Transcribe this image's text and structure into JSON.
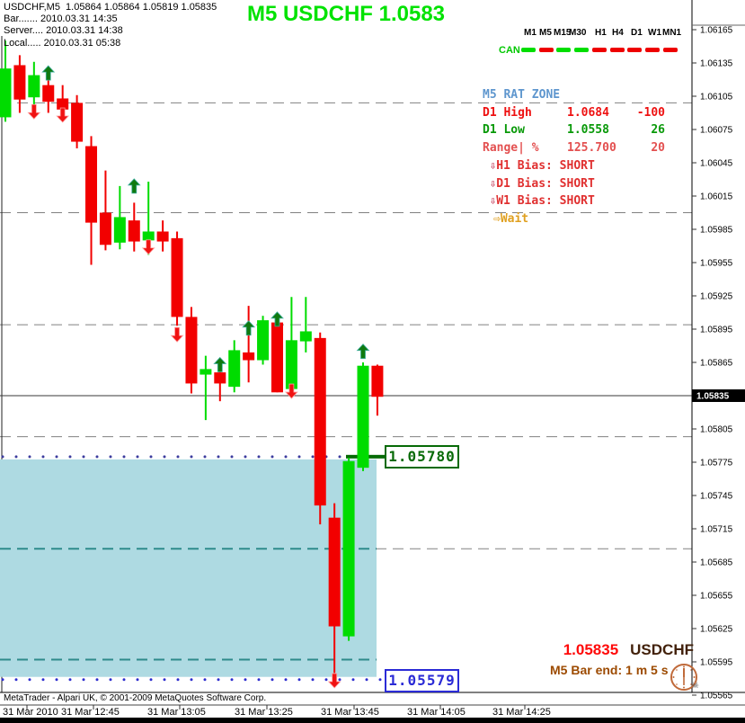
{
  "header": {
    "symbol_line": "USDCHF,M5  1.05864 1.05864 1.05819 1.05835",
    "bar_line": "Bar....... 2010.03.31 14:35",
    "server_line": "Server.... 2010.03.31 14:38",
    "local_line": "Local..... 2010.03.31 05:38",
    "title": "M5 USDCHF 1.0583"
  },
  "timeframe_bar": {
    "row_label": "CAN",
    "items": [
      {
        "label": "M1",
        "state": "green"
      },
      {
        "label": "M5",
        "state": "red"
      },
      {
        "label": "M15",
        "state": "green"
      },
      {
        "label": "M30",
        "state": "green"
      },
      {
        "label": "H1",
        "state": "red"
      },
      {
        "label": "H4",
        "state": "red"
      },
      {
        "label": "D1",
        "state": "red"
      },
      {
        "label": "W1",
        "state": "red"
      },
      {
        "label": "MN1",
        "state": "red"
      }
    ],
    "state_colors": {
      "green": "#00de00",
      "red": "#ee0000"
    }
  },
  "panel": {
    "title": "M5 RAT ZONE",
    "rows": [
      {
        "label": "D1 High",
        "value": "1.0684",
        "extra": "-100",
        "color": "#ee1111"
      },
      {
        "label": "D1 Low",
        "value": "1.0558",
        "extra": "26",
        "color": "#089908"
      },
      {
        "label": "Range| %",
        "value": "125.700",
        "extra": "20",
        "color": "#e35050"
      }
    ],
    "bias_rows": [
      {
        "icon": "⇩",
        "text": "H1 Bias: SHORT",
        "color": "#e03030",
        "icon_color": "#c03050"
      },
      {
        "icon": "⇩",
        "text": "D1 Bias: SHORT",
        "color": "#e03030",
        "icon_color": "#c03050"
      },
      {
        "icon": "⇩",
        "text": "W1 Bias: SHORT",
        "color": "#e03030",
        "icon_color": "#c03050"
      }
    ],
    "wait_row": {
      "icon": "⇨",
      "text": "Wait"
    }
  },
  "chart_data": {
    "type": "candlestick",
    "symbol": "USDCHF",
    "period": "M5",
    "axis": {
      "top_label_price": 1.06165,
      "price_step": 0.0003,
      "label_count": 21,
      "current_price": 1.05835,
      "price_labels": [
        "1.06165",
        "1.06135",
        "1.06105",
        "1.06075",
        "1.06045",
        "1.06015",
        "1.05985",
        "1.05955",
        "1.05925",
        "1.05895",
        "1.05865",
        "1.05835",
        "1.05805",
        "1.05775",
        "1.05745",
        "1.05715",
        "1.05685",
        "1.05655",
        "1.05625",
        "1.05595",
        "1.05565"
      ]
    },
    "gridline_prices": [
      1.06099,
      1.06,
      1.05899,
      1.05798,
      1.05697
    ],
    "zone": {
      "top_price": 1.0578,
      "bottom_price": 1.05579,
      "fill": "#aedae2",
      "grid_color": "#2e8b8b",
      "zone_grid_prices": [
        1.05697,
        1.05597
      ]
    },
    "levels": [
      {
        "label": "1.05780",
        "price": 1.0578,
        "dot_color": "#3c3c9e",
        "accent": "#066a06"
      },
      {
        "label": "1.05579",
        "price": 1.05579,
        "dot_color": "#2e2ecf",
        "accent": "#2b2bd6"
      }
    ],
    "candles": [
      {
        "o": 1.06086,
        "h": 1.06155,
        "l": 1.06082,
        "c": 1.0613
      },
      {
        "o": 1.06133,
        "h": 1.06142,
        "l": 1.0609,
        "c": 1.06102
      },
      {
        "o": 1.06104,
        "h": 1.06136,
        "l": 1.06094,
        "c": 1.06124
      },
      {
        "o": 1.06115,
        "h": 1.0612,
        "l": 1.0609,
        "c": 1.061
      },
      {
        "o": 1.06103,
        "h": 1.06115,
        "l": 1.06086,
        "c": 1.06093
      },
      {
        "o": 1.06099,
        "h": 1.06106,
        "l": 1.06058,
        "c": 1.06064
      },
      {
        "o": 1.0606,
        "h": 1.06069,
        "l": 1.05953,
        "c": 1.05991
      },
      {
        "o": 1.06,
        "h": 1.06038,
        "l": 1.05966,
        "c": 1.05971
      },
      {
        "o": 1.05973,
        "h": 1.06024,
        "l": 1.05967,
        "c": 1.05996
      },
      {
        "o": 1.05993,
        "h": 1.06009,
        "l": 1.05965,
        "c": 1.05974
      },
      {
        "o": 1.05975,
        "h": 1.06028,
        "l": 1.05962,
        "c": 1.05983
      },
      {
        "o": 1.05983,
        "h": 1.05993,
        "l": 1.05965,
        "c": 1.05974
      },
      {
        "o": 1.05977,
        "h": 1.05983,
        "l": 1.05898,
        "c": 1.05906
      },
      {
        "o": 1.05906,
        "h": 1.05915,
        "l": 1.05837,
        "c": 1.05846
      },
      {
        "o": 1.05854,
        "h": 1.05871,
        "l": 1.05813,
        "c": 1.05859
      },
      {
        "o": 1.05856,
        "h": 1.05859,
        "l": 1.0583,
        "c": 1.05846
      },
      {
        "o": 1.05843,
        "h": 1.05885,
        "l": 1.05838,
        "c": 1.05876
      },
      {
        "o": 1.05874,
        "h": 1.05916,
        "l": 1.05847,
        "c": 1.05867
      },
      {
        "o": 1.05867,
        "h": 1.05907,
        "l": 1.05863,
        "c": 1.05903
      },
      {
        "o": 1.05901,
        "h": 1.0591,
        "l": 1.05838,
        "c": 1.05838
      },
      {
        "o": 1.05841,
        "h": 1.05924,
        "l": 1.05837,
        "c": 1.05885
      },
      {
        "o": 1.05884,
        "h": 1.05924,
        "l": 1.05874,
        "c": 1.05893
      },
      {
        "o": 1.05887,
        "h": 1.05892,
        "l": 1.05719,
        "c": 1.05736
      },
      {
        "o": 1.05725,
        "h": 1.05738,
        "l": 1.05585,
        "c": 1.05627
      },
      {
        "o": 1.05618,
        "h": 1.05779,
        "l": 1.05614,
        "c": 1.05776
      },
      {
        "o": 1.0577,
        "h": 1.05865,
        "l": 1.05767,
        "c": 1.05862
      },
      {
        "o": 1.05862,
        "h": 1.05863,
        "l": 1.05817,
        "c": 1.05834
      }
    ],
    "arrows": [
      {
        "i": 2,
        "dir": "down",
        "price": 1.06091
      },
      {
        "i": 3,
        "dir": "up",
        "price": 1.06126
      },
      {
        "i": 4,
        "dir": "down",
        "price": 1.06088
      },
      {
        "i": 9,
        "dir": "up",
        "price": 1.06024
      },
      {
        "i": 10,
        "dir": "down",
        "price": 1.05969
      },
      {
        "i": 12,
        "dir": "down",
        "price": 1.0589
      },
      {
        "i": 15,
        "dir": "up",
        "price": 1.05863
      },
      {
        "i": 17,
        "dir": "up",
        "price": 1.05896
      },
      {
        "i": 19,
        "dir": "up",
        "price": 1.05904
      },
      {
        "i": 20,
        "dir": "down",
        "price": 1.05839
      },
      {
        "i": 23,
        "dir": "down",
        "price": 1.05578
      },
      {
        "i": 25,
        "dir": "up",
        "price": 1.05875
      }
    ],
    "colors": {
      "up": "#00dc00",
      "down": "#f20000",
      "arrow_up": "#0f7a0f",
      "arrow_down": "#f01212",
      "grid": "#808080",
      "bid_line": "#3a3a3a"
    }
  },
  "x_axis": {
    "labels": [
      "31 Mar 2010",
      "31 Mar 12:45",
      "31 Mar 13:05",
      "31 Mar 13:25",
      "31 Mar 13:45",
      "31 Mar 14:05",
      "31 Mar 14:25"
    ]
  },
  "footer": {
    "copyright": "MetaTrader - Alpari UK, © 2001-2009 MetaQuotes Software Corp."
  },
  "info_corner": {
    "price": "1.05835",
    "symbol": "USDCHF",
    "bar_end": "M5 Bar end: 1 m 5 s"
  }
}
